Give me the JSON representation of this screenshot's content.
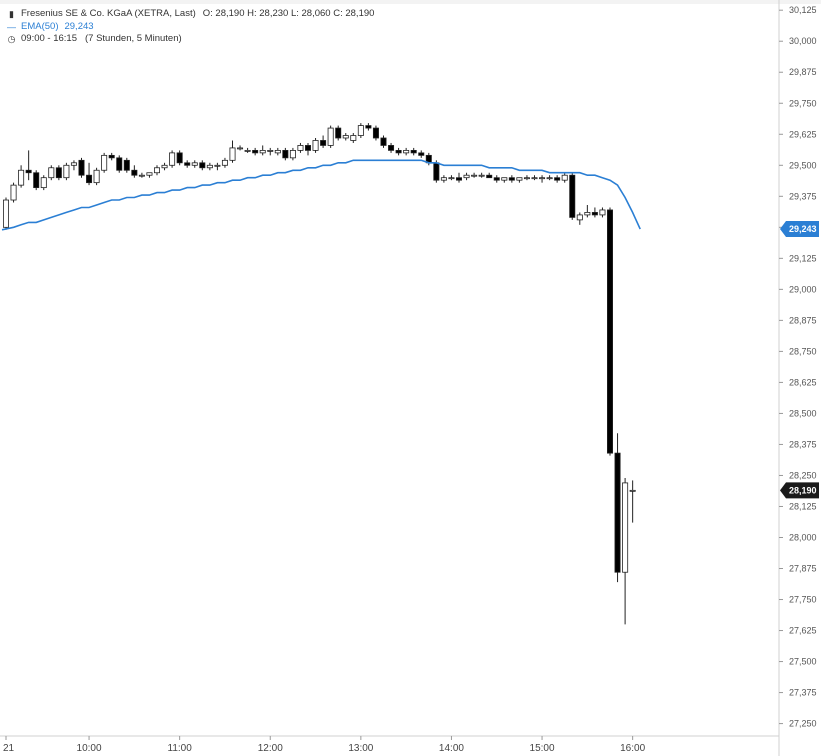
{
  "legend": {
    "title": "Fresenius SE & Co. KGaA (XETRA, Last)",
    "ohlc_text": "O: 28,190   H: 28,230   L: 28,060   C: 28,190",
    "ema_label": "EMA(50)",
    "ema_value": "29,243",
    "session": "09:00 - 16:15",
    "session_note": "(7 Stunden, 5 Minuten)",
    "icons": {
      "title": "candlestick-icon",
      "ema": "line-swatch-icon",
      "session": "clock-icon"
    }
  },
  "chart_data": {
    "type": "candlestick",
    "title": "Fresenius SE & Co. KGaA (XETRA, Last)",
    "ylim": [
      27.2,
      30.15
    ],
    "y_ticks": [
      "30,125",
      "30,000",
      "29,875",
      "29,750",
      "29,625",
      "29,500",
      "29,375",
      "29,250",
      "29,125",
      "29,000",
      "28,875",
      "28,750",
      "28,625",
      "28,500",
      "28,375",
      "28,250",
      "28,125",
      "28,000",
      "27,875",
      "27,750",
      "27,625",
      "27,500",
      "27,375",
      "27,250"
    ],
    "x_ticks": [
      {
        "label": "21",
        "index": 0
      },
      {
        "label": "10:00",
        "index": 11
      },
      {
        "label": "11:00",
        "index": 23
      },
      {
        "label": "12:00",
        "index": 35
      },
      {
        "label": "13:00",
        "index": 47
      },
      {
        "label": "14:00",
        "index": 59
      },
      {
        "label": "15:00",
        "index": 71
      },
      {
        "label": "16:00",
        "index": 83
      }
    ],
    "last_price": {
      "label": "28,190",
      "value": 28.19,
      "color": "#1a1a1a"
    },
    "ema_tag": {
      "label": "29,243",
      "value": 29.243,
      "color": "#2b7fd4"
    },
    "ema_color": "#2b7fd4",
    "candles": [
      [
        29.25,
        29.37,
        29.24,
        29.36
      ],
      [
        29.36,
        29.43,
        29.35,
        29.42
      ],
      [
        29.42,
        29.5,
        29.41,
        29.48
      ],
      [
        29.48,
        29.56,
        29.44,
        29.47
      ],
      [
        29.47,
        29.48,
        29.4,
        29.41
      ],
      [
        29.41,
        29.46,
        29.4,
        29.45
      ],
      [
        29.45,
        29.5,
        29.44,
        29.49
      ],
      [
        29.49,
        29.5,
        29.44,
        29.45
      ],
      [
        29.45,
        29.51,
        29.44,
        29.5
      ],
      [
        29.5,
        29.52,
        29.48,
        29.51
      ],
      [
        29.52,
        29.53,
        29.45,
        29.46
      ],
      [
        29.46,
        29.51,
        29.42,
        29.43
      ],
      [
        29.43,
        29.49,
        29.42,
        29.48
      ],
      [
        29.48,
        29.55,
        29.47,
        29.54
      ],
      [
        29.54,
        29.55,
        29.52,
        29.53
      ],
      [
        29.53,
        29.54,
        29.47,
        29.48
      ],
      [
        29.52,
        29.53,
        29.47,
        29.48
      ],
      [
        29.48,
        29.5,
        29.45,
        29.46
      ],
      [
        29.46,
        29.47,
        29.45,
        29.46
      ],
      [
        29.46,
        29.47,
        29.45,
        29.47
      ],
      [
        29.47,
        29.5,
        29.46,
        29.49
      ],
      [
        29.49,
        29.51,
        29.48,
        29.5
      ],
      [
        29.5,
        29.56,
        29.49,
        29.55
      ],
      [
        29.55,
        29.56,
        29.5,
        29.51
      ],
      [
        29.51,
        29.52,
        29.49,
        29.5
      ],
      [
        29.5,
        29.52,
        29.49,
        29.51
      ],
      [
        29.51,
        29.52,
        29.48,
        29.49
      ],
      [
        29.49,
        29.51,
        29.48,
        29.5
      ],
      [
        29.5,
        29.51,
        29.48,
        29.5
      ],
      [
        29.5,
        29.53,
        29.49,
        29.52
      ],
      [
        29.52,
        29.6,
        29.51,
        29.57
      ],
      [
        29.57,
        29.58,
        29.56,
        29.57
      ],
      [
        29.56,
        29.57,
        29.55,
        29.56
      ],
      [
        29.56,
        29.57,
        29.54,
        29.55
      ],
      [
        29.55,
        29.58,
        29.54,
        29.56
      ],
      [
        29.56,
        29.57,
        29.54,
        29.56
      ],
      [
        29.55,
        29.57,
        29.54,
        29.56
      ],
      [
        29.56,
        29.57,
        29.52,
        29.53
      ],
      [
        29.53,
        29.57,
        29.52,
        29.56
      ],
      [
        29.56,
        29.59,
        29.55,
        29.58
      ],
      [
        29.58,
        29.59,
        29.54,
        29.56
      ],
      [
        29.56,
        29.61,
        29.55,
        29.6
      ],
      [
        29.6,
        29.62,
        29.57,
        29.58
      ],
      [
        29.58,
        29.66,
        29.57,
        29.65
      ],
      [
        29.65,
        29.66,
        29.6,
        29.61
      ],
      [
        29.61,
        29.63,
        29.6,
        29.62
      ],
      [
        29.6,
        29.63,
        29.59,
        29.62
      ],
      [
        29.62,
        29.67,
        29.61,
        29.66
      ],
      [
        29.66,
        29.67,
        29.64,
        29.65
      ],
      [
        29.65,
        29.66,
        29.6,
        29.61
      ],
      [
        29.61,
        29.62,
        29.57,
        29.58
      ],
      [
        29.58,
        29.59,
        29.55,
        29.56
      ],
      [
        29.56,
        29.57,
        29.54,
        29.55
      ],
      [
        29.55,
        29.57,
        29.54,
        29.56
      ],
      [
        29.56,
        29.57,
        29.54,
        29.55
      ],
      [
        29.55,
        29.56,
        29.53,
        29.54
      ],
      [
        29.54,
        29.55,
        29.5,
        29.51
      ],
      [
        29.51,
        29.52,
        29.43,
        29.44
      ],
      [
        29.44,
        29.46,
        29.43,
        29.45
      ],
      [
        29.45,
        29.46,
        29.44,
        29.45
      ],
      [
        29.45,
        29.47,
        29.43,
        29.44
      ],
      [
        29.45,
        29.47,
        29.44,
        29.46
      ],
      [
        29.46,
        29.47,
        29.45,
        29.46
      ],
      [
        29.46,
        29.47,
        29.45,
        29.46
      ],
      [
        29.46,
        29.47,
        29.45,
        29.45
      ],
      [
        29.45,
        29.46,
        29.43,
        29.44
      ],
      [
        29.44,
        29.45,
        29.43,
        29.45
      ],
      [
        29.45,
        29.46,
        29.43,
        29.44
      ],
      [
        29.44,
        29.45,
        29.43,
        29.45
      ],
      [
        29.45,
        29.46,
        29.44,
        29.45
      ],
      [
        29.45,
        29.46,
        29.44,
        29.45
      ],
      [
        29.45,
        29.46,
        29.43,
        29.45
      ],
      [
        29.45,
        29.46,
        29.44,
        29.45
      ],
      [
        29.45,
        29.46,
        29.43,
        29.44
      ],
      [
        29.44,
        29.47,
        29.43,
        29.46
      ],
      [
        29.46,
        29.47,
        29.28,
        29.29
      ],
      [
        29.28,
        29.31,
        29.26,
        29.3
      ],
      [
        29.3,
        29.34,
        29.29,
        29.31
      ],
      [
        29.31,
        29.33,
        29.29,
        29.3
      ],
      [
        29.3,
        29.33,
        29.29,
        29.32
      ],
      [
        29.32,
        29.33,
        28.33,
        28.34
      ],
      [
        28.34,
        28.42,
        27.82,
        27.86
      ],
      [
        27.86,
        28.24,
        27.65,
        28.22
      ],
      [
        28.19,
        28.23,
        28.06,
        28.19
      ]
    ],
    "ema": [
      29.24,
      29.25,
      29.26,
      29.27,
      29.27,
      29.28,
      29.29,
      29.3,
      29.31,
      29.32,
      29.33,
      29.33,
      29.34,
      29.35,
      29.36,
      29.36,
      29.37,
      29.37,
      29.38,
      29.38,
      29.39,
      29.39,
      29.4,
      29.4,
      29.41,
      29.41,
      29.42,
      29.42,
      29.43,
      29.43,
      29.44,
      29.44,
      29.45,
      29.45,
      29.46,
      29.46,
      29.47,
      29.47,
      29.48,
      29.48,
      29.49,
      29.49,
      29.5,
      29.5,
      29.51,
      29.51,
      29.52,
      29.52,
      29.52,
      29.52,
      29.52,
      29.52,
      29.52,
      29.52,
      29.52,
      29.52,
      29.51,
      29.51,
      29.5,
      29.5,
      29.5,
      29.5,
      29.5,
      29.5,
      29.49,
      29.49,
      29.49,
      29.49,
      29.48,
      29.48,
      29.48,
      29.48,
      29.47,
      29.47,
      29.47,
      29.47,
      29.47,
      29.46,
      29.46,
      29.45,
      29.44,
      29.42,
      29.37,
      29.31,
      29.243
    ]
  }
}
